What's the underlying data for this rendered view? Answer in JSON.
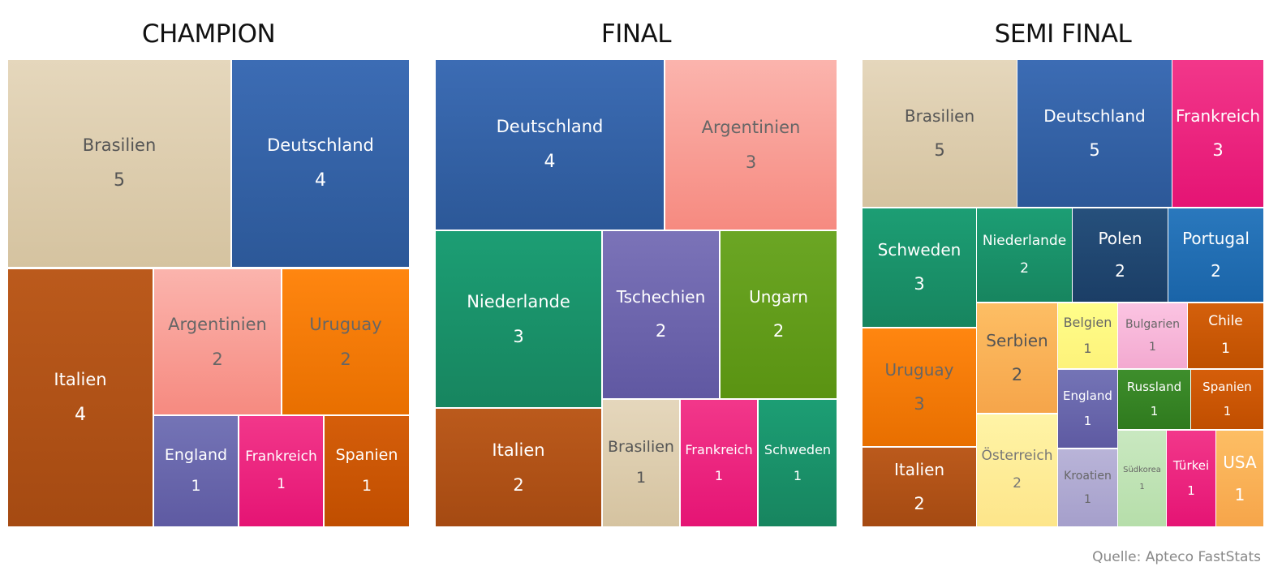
{
  "source": "Quelle: Apteco FastStats",
  "palette": {
    "Brasilien": [
      "#e5d7bc",
      "#d5c3a0",
      "#555555"
    ],
    "Deutschland": [
      "#3c6cb4",
      "#2c5898",
      "#ffffff"
    ],
    "Italien": [
      "#bb5a1c",
      "#a54a12",
      "#ffffff"
    ],
    "Argentinien": [
      "#fbb4ad",
      "#f68a80",
      "#666666"
    ],
    "Uruguay": [
      "#ff8610",
      "#e86f00",
      "#666666"
    ],
    "England": [
      "#7474b6",
      "#5e5aa2",
      "#ffffff"
    ],
    "Frankreich": [
      "#f2378a",
      "#e51474",
      "#ffffff"
    ],
    "Spanien": [
      "#d55e0a",
      "#c04e00",
      "#ffffff"
    ],
    "Niederlande": [
      "#1c9e74",
      "#17855f",
      "#ffffff"
    ],
    "Tschechien": [
      "#7b73b8",
      "#6058a2",
      "#ffffff"
    ],
    "Ungarn": [
      "#6ba624",
      "#5a9312",
      "#ffffff"
    ],
    "Schweden": [
      "#1c9e74",
      "#17855f",
      "#ffffff"
    ],
    "Polen": [
      "#26507c",
      "#1b3e66",
      "#ffffff"
    ],
    "Portugal": [
      "#2a78bd",
      "#1a64a8",
      "#ffffff"
    ],
    "Serbien": [
      "#fdbe64",
      "#f6a54a",
      "#555555"
    ],
    "Belgien": [
      "#fffe8a",
      "#fdf27a",
      "#666666"
    ],
    "Bulgarien": [
      "#fbc4e2",
      "#f3a9d0",
      "#666666"
    ],
    "Chile": [
      "#d4600c",
      "#bf5000",
      "#ffffff"
    ],
    "Russland": [
      "#3e8e2c",
      "#2f7a1e",
      "#ffffff"
    ],
    "Österreich": [
      "#fff4a6",
      "#fde58a",
      "#777777"
    ],
    "Kroatien": [
      "#b9b4d8",
      "#a59fcb",
      "#666666"
    ],
    "Südkorea": [
      "#c9e8c0",
      "#b6deaa",
      "#666666"
    ],
    "Türkei": [
      "#f2378a",
      "#e51474",
      "#ffffff"
    ],
    "USA": [
      "#fdbe64",
      "#f6a54a",
      "#ffffff"
    ]
  },
  "chart_data": [
    {
      "type": "treemap",
      "title": "CHAMPION",
      "items": [
        {
          "label": "Brasilien",
          "value": 5
        },
        {
          "label": "Deutschland",
          "value": 4
        },
        {
          "label": "Italien",
          "value": 4
        },
        {
          "label": "Argentinien",
          "value": 2
        },
        {
          "label": "Uruguay",
          "value": 2
        },
        {
          "label": "England",
          "value": 1
        },
        {
          "label": "Frankreich",
          "value": 1
        },
        {
          "label": "Spanien",
          "value": 1
        }
      ]
    },
    {
      "type": "treemap",
      "title": "FINAL",
      "items": [
        {
          "label": "Deutschland",
          "value": 4
        },
        {
          "label": "Argentinien",
          "value": 3
        },
        {
          "label": "Niederlande",
          "value": 3
        },
        {
          "label": "Tschechien",
          "value": 2
        },
        {
          "label": "Ungarn",
          "value": 2
        },
        {
          "label": "Italien",
          "value": 2
        },
        {
          "label": "Brasilien",
          "value": 1
        },
        {
          "label": "Frankreich",
          "value": 1
        },
        {
          "label": "Schweden",
          "value": 1
        }
      ]
    },
    {
      "type": "treemap",
      "title": "SEMI FINAL",
      "items": [
        {
          "label": "Brasilien",
          "value": 5
        },
        {
          "label": "Deutschland",
          "value": 5
        },
        {
          "label": "Frankreich",
          "value": 3
        },
        {
          "label": "Schweden",
          "value": 3
        },
        {
          "label": "Niederlande",
          "value": 2
        },
        {
          "label": "Polen",
          "value": 2
        },
        {
          "label": "Portugal",
          "value": 2
        },
        {
          "label": "Uruguay",
          "value": 3
        },
        {
          "label": "Serbien",
          "value": 2
        },
        {
          "label": "Belgien",
          "value": 1
        },
        {
          "label": "Bulgarien",
          "value": 1
        },
        {
          "label": "Chile",
          "value": 1
        },
        {
          "label": "England",
          "value": 1
        },
        {
          "label": "Russland",
          "value": 1
        },
        {
          "label": "Spanien",
          "value": 1
        },
        {
          "label": "Italien",
          "value": 2
        },
        {
          "label": "Österreich",
          "value": 2
        },
        {
          "label": "Kroatien",
          "value": 1
        },
        {
          "label": "Südkorea",
          "value": 1
        },
        {
          "label": "Türkei",
          "value": 1
        },
        {
          "label": "USA",
          "value": 1
        }
      ]
    }
  ]
}
